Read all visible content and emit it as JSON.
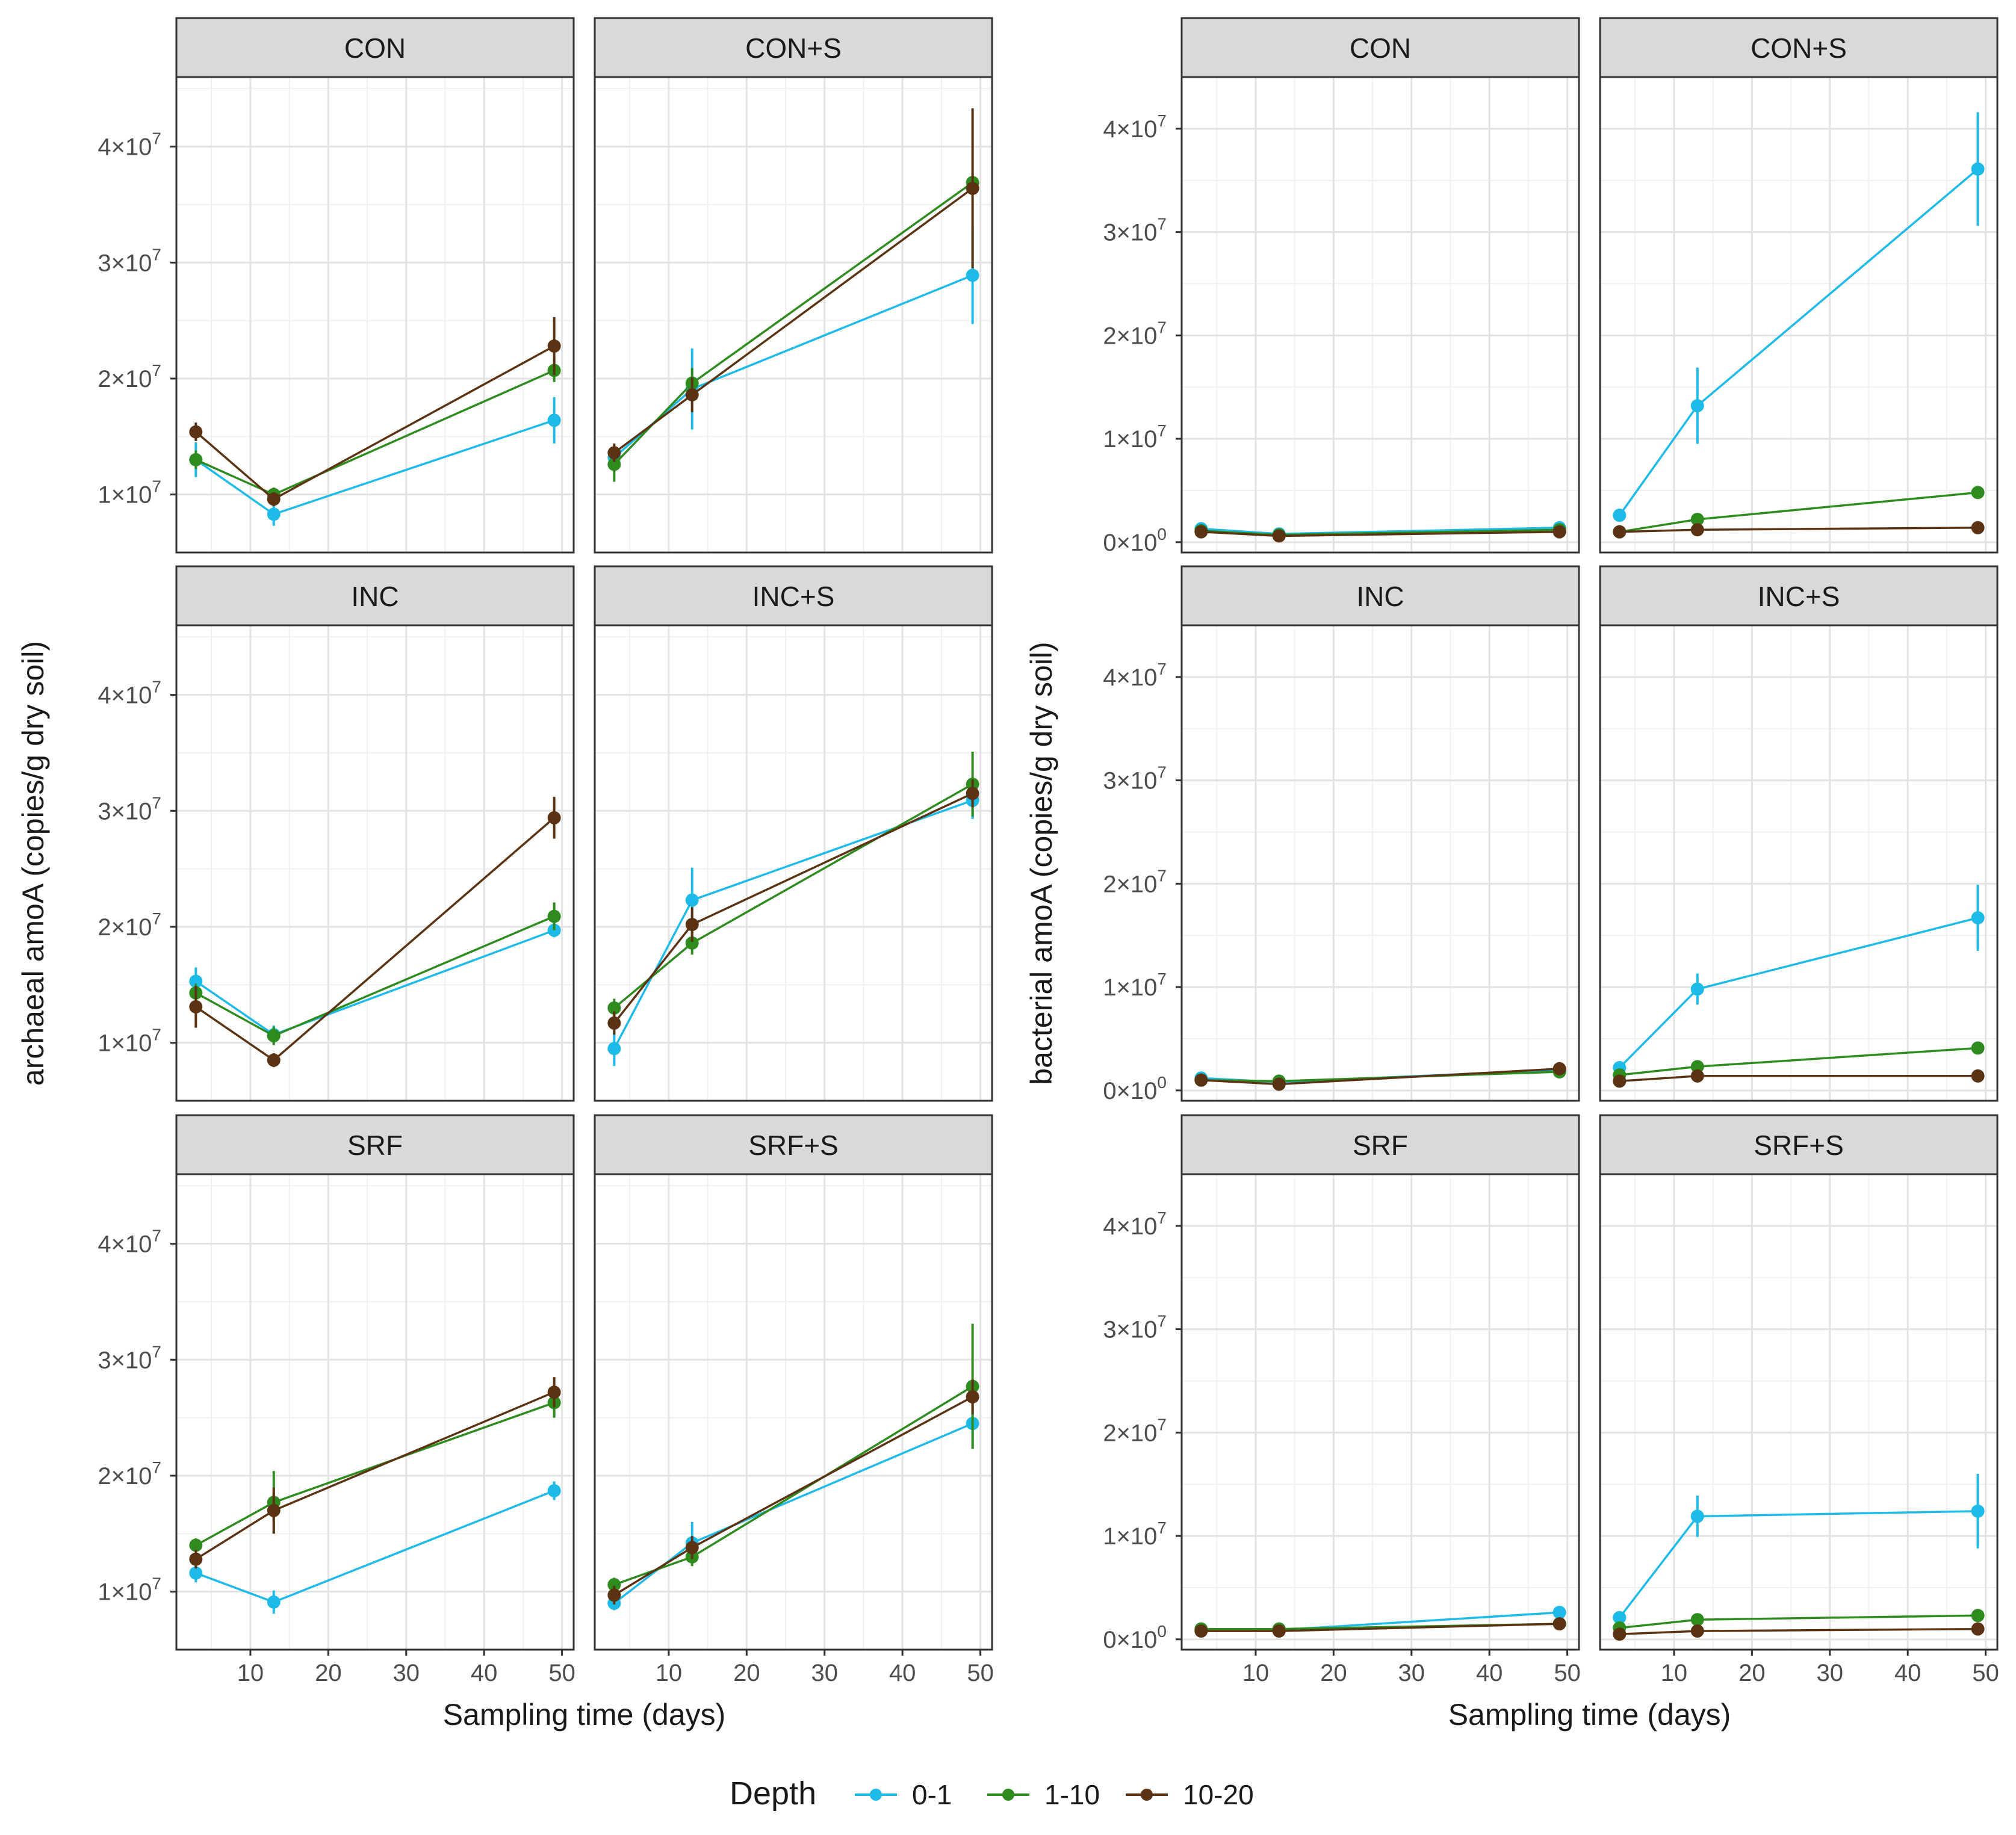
{
  "figure": {
    "x_axis_label": "Sampling time (days)",
    "legend": {
      "title": "Depth",
      "entries": [
        {
          "label": "0-1",
          "color": "#1ebbe8"
        },
        {
          "label": "1-10",
          "color": "#2e8b1e"
        },
        {
          "label": "10-20",
          "color": "#5b3312"
        }
      ]
    }
  },
  "chart_data": [
    {
      "type": "line",
      "title": "archaeal amoA",
      "ylabel": "archaeal amoA (copies/g dry soil)",
      "xlabel": "Sampling time (days)",
      "xlim": [
        0.5,
        51.5
      ],
      "x_ticks": [
        10,
        20,
        30,
        40,
        50
      ],
      "x_tick_labels": [
        "10",
        "20",
        "30",
        "40",
        "50"
      ],
      "ylim": [
        5000000,
        46000000
      ],
      "y_ticks": [
        10000000,
        20000000,
        30000000,
        40000000
      ],
      "y_tick_labels": [
        {
          "mant": "1",
          "exp": "7"
        },
        {
          "mant": "2",
          "exp": "7"
        },
        {
          "mant": "3",
          "exp": "7"
        },
        {
          "mant": "4",
          "exp": "7"
        }
      ],
      "panels": [
        {
          "label": "CON",
          "series": [
            {
              "name": "0-1",
              "x": [
                3,
                13,
                49
              ],
              "y": [
                13000000,
                8300000,
                16400000
              ],
              "err": [
                1500000,
                1000000,
                2000000
              ]
            },
            {
              "name": "1-10",
              "x": [
                3,
                13,
                49
              ],
              "y": [
                13000000,
                10000000,
                20700000
              ],
              "err": [
                800000,
                600000,
                1000000
              ]
            },
            {
              "name": "10-20",
              "x": [
                3,
                13,
                49
              ],
              "y": [
                15400000,
                9600000,
                22800000
              ],
              "err": [
                800000,
                600000,
                2500000
              ]
            }
          ]
        },
        {
          "label": "CON+S",
          "series": [
            {
              "name": "0-1",
              "x": [
                3,
                13,
                49
              ],
              "y": [
                13200000,
                19100000,
                28900000
              ],
              "err": [
                800000,
                3500000,
                4200000
              ]
            },
            {
              "name": "1-10",
              "x": [
                3,
                13,
                49
              ],
              "y": [
                12600000,
                19600000,
                36900000
              ],
              "err": [
                1500000,
                1300000,
                800000
              ]
            },
            {
              "name": "10-20",
              "x": [
                3,
                13,
                49
              ],
              "y": [
                13600000,
                18600000,
                36400000
              ],
              "err": [
                800000,
                1500000,
                6900000
              ]
            }
          ]
        },
        {
          "label": "INC",
          "series": [
            {
              "name": "0-1",
              "x": [
                3,
                13,
                49
              ],
              "y": [
                15300000,
                10700000,
                19700000
              ],
              "err": [
                1200000,
                800000,
                600000
              ]
            },
            {
              "name": "1-10",
              "x": [
                3,
                13,
                49
              ],
              "y": [
                14300000,
                10600000,
                20900000
              ],
              "err": [
                800000,
                800000,
                1200000
              ]
            },
            {
              "name": "10-20",
              "x": [
                3,
                13,
                49
              ],
              "y": [
                13100000,
                8500000,
                29400000
              ],
              "err": [
                1800000,
                600000,
                1800000
              ]
            }
          ]
        },
        {
          "label": "INC+S",
          "series": [
            {
              "name": "0-1",
              "x": [
                3,
                13,
                49
              ],
              "y": [
                9500000,
                22300000,
                30900000
              ],
              "err": [
                1500000,
                2800000,
                1600000
              ]
            },
            {
              "name": "1-10",
              "x": [
                3,
                13,
                49
              ],
              "y": [
                13000000,
                18600000,
                32300000
              ],
              "err": [
                800000,
                1000000,
                2800000
              ]
            },
            {
              "name": "10-20",
              "x": [
                3,
                13,
                49
              ],
              "y": [
                11700000,
                20200000,
                31500000
              ],
              "err": [
                1000000,
                1500000,
                1200000
              ]
            }
          ]
        },
        {
          "label": "SRF",
          "series": [
            {
              "name": "0-1",
              "x": [
                3,
                13,
                49
              ],
              "y": [
                11600000,
                9100000,
                18700000
              ],
              "err": [
                800000,
                1000000,
                800000
              ]
            },
            {
              "name": "1-10",
              "x": [
                3,
                13,
                49
              ],
              "y": [
                14000000,
                17700000,
                26300000
              ],
              "err": [
                600000,
                2700000,
                1300000
              ]
            },
            {
              "name": "10-20",
              "x": [
                3,
                13,
                49
              ],
              "y": [
                12800000,
                17000000,
                27200000
              ],
              "err": [
                800000,
                2000000,
                1300000
              ]
            }
          ]
        },
        {
          "label": "SRF+S",
          "series": [
            {
              "name": "0-1",
              "x": [
                3,
                13,
                49
              ],
              "y": [
                9000000,
                14200000,
                24500000
              ],
              "err": [
                600000,
                1800000,
                2000000
              ]
            },
            {
              "name": "1-10",
              "x": [
                3,
                13,
                49
              ],
              "y": [
                10600000,
                13000000,
                27700000
              ],
              "err": [
                600000,
                800000,
                5400000
              ]
            },
            {
              "name": "10-20",
              "x": [
                3,
                13,
                49
              ],
              "y": [
                9700000,
                13800000,
                26800000
              ],
              "err": [
                800000,
                1000000,
                1500000
              ]
            }
          ]
        }
      ]
    },
    {
      "type": "line",
      "title": "bacterial amoA",
      "ylabel": "bacterial amoA (copies/g dry soil)",
      "xlabel": "Sampling time (days)",
      "xlim": [
        0.5,
        51.5
      ],
      "x_ticks": [
        10,
        20,
        30,
        40,
        50
      ],
      "x_tick_labels": [
        "10",
        "20",
        "30",
        "40",
        "50"
      ],
      "ylim": [
        -1000000,
        45000000
      ],
      "y_ticks": [
        0,
        10000000,
        20000000,
        30000000,
        40000000
      ],
      "y_tick_labels": [
        {
          "mant": "0",
          "exp": "0"
        },
        {
          "mant": "1",
          "exp": "7"
        },
        {
          "mant": "2",
          "exp": "7"
        },
        {
          "mant": "3",
          "exp": "7"
        },
        {
          "mant": "4",
          "exp": "7"
        }
      ],
      "panels": [
        {
          "label": "CON",
          "series": [
            {
              "name": "0-1",
              "x": [
                3,
                13,
                49
              ],
              "y": [
                1300000,
                800000,
                1400000
              ],
              "err": [
                300000,
                200000,
                200000
              ]
            },
            {
              "name": "1-10",
              "x": [
                3,
                13,
                49
              ],
              "y": [
                1100000,
                700000,
                1200000
              ],
              "err": [
                200000,
                200000,
                200000
              ]
            },
            {
              "name": "10-20",
              "x": [
                3,
                13,
                49
              ],
              "y": [
                1000000,
                600000,
                1000000
              ],
              "err": [
                200000,
                200000,
                200000
              ]
            }
          ]
        },
        {
          "label": "CON+S",
          "series": [
            {
              "name": "0-1",
              "x": [
                3,
                13,
                49
              ],
              "y": [
                2600000,
                13200000,
                36100000
              ],
              "err": [
                400000,
                3700000,
                5500000
              ]
            },
            {
              "name": "1-10",
              "x": [
                3,
                13,
                49
              ],
              "y": [
                1000000,
                2200000,
                4800000
              ],
              "err": [
                200000,
                300000,
                400000
              ]
            },
            {
              "name": "10-20",
              "x": [
                3,
                13,
                49
              ],
              "y": [
                1000000,
                1200000,
                1400000
              ],
              "err": [
                200000,
                200000,
                200000
              ]
            }
          ]
        },
        {
          "label": "INC",
          "series": [
            {
              "name": "0-1",
              "x": [
                3,
                13,
                49
              ],
              "y": [
                1200000,
                800000,
                2000000
              ],
              "err": [
                300000,
                200000,
                300000
              ]
            },
            {
              "name": "1-10",
              "x": [
                3,
                13,
                49
              ],
              "y": [
                1000000,
                900000,
                1800000
              ],
              "err": [
                200000,
                200000,
                300000
              ]
            },
            {
              "name": "10-20",
              "x": [
                3,
                13,
                49
              ],
              "y": [
                1000000,
                600000,
                2100000
              ],
              "err": [
                200000,
                200000,
                300000
              ]
            }
          ]
        },
        {
          "label": "INC+S",
          "series": [
            {
              "name": "0-1",
              "x": [
                3,
                13,
                49
              ],
              "y": [
                2200000,
                9800000,
                16700000
              ],
              "err": [
                400000,
                1500000,
                3200000
              ]
            },
            {
              "name": "1-10",
              "x": [
                3,
                13,
                49
              ],
              "y": [
                1500000,
                2300000,
                4100000
              ],
              "err": [
                300000,
                300000,
                500000
              ]
            },
            {
              "name": "10-20",
              "x": [
                3,
                13,
                49
              ],
              "y": [
                900000,
                1400000,
                1400000
              ],
              "err": [
                300000,
                200000,
                200000
              ]
            }
          ]
        },
        {
          "label": "SRF",
          "series": [
            {
              "name": "0-1",
              "x": [
                3,
                13,
                49
              ],
              "y": [
                900000,
                900000,
                2600000
              ],
              "err": [
                200000,
                200000,
                300000
              ]
            },
            {
              "name": "1-10",
              "x": [
                3,
                13,
                49
              ],
              "y": [
                1000000,
                1000000,
                1500000
              ],
              "err": [
                200000,
                200000,
                200000
              ]
            },
            {
              "name": "10-20",
              "x": [
                3,
                13,
                49
              ],
              "y": [
                800000,
                800000,
                1500000
              ],
              "err": [
                200000,
                200000,
                200000
              ]
            }
          ]
        },
        {
          "label": "SRF+S",
          "series": [
            {
              "name": "0-1",
              "x": [
                3,
                13,
                49
              ],
              "y": [
                2100000,
                11900000,
                12400000
              ],
              "err": [
                400000,
                2000000,
                3600000
              ]
            },
            {
              "name": "1-10",
              "x": [
                3,
                13,
                49
              ],
              "y": [
                1100000,
                1900000,
                2300000
              ],
              "err": [
                300000,
                300000,
                300000
              ]
            },
            {
              "name": "10-20",
              "x": [
                3,
                13,
                49
              ],
              "y": [
                500000,
                800000,
                1000000
              ],
              "err": [
                300000,
                200000,
                200000
              ]
            }
          ]
        }
      ]
    }
  ]
}
